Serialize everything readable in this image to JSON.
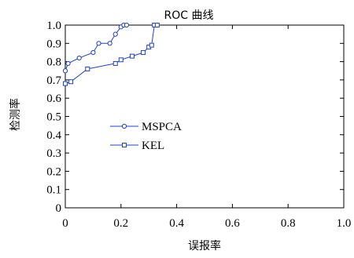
{
  "chart_data": {
    "type": "line",
    "title": "ROC 曲线",
    "xlabel": "误报率",
    "ylabel": "检测率",
    "xlim": [
      0,
      1
    ],
    "ylim": [
      0,
      1
    ],
    "xticks": [
      "0",
      "0.2",
      "0.4",
      "0.6",
      "0.8",
      "1.0"
    ],
    "yticks": [
      "0",
      "0.1",
      "0.2",
      "0.3",
      "0.4",
      "0.5",
      "0.6",
      "0.7",
      "0.8",
      "0.9",
      "1.0"
    ],
    "grid": false,
    "legend_position": "left-center",
    "series": [
      {
        "name": "MSPCA",
        "marker": "circle",
        "color": "#1f3fd6",
        "x": [
          0.0,
          0.01,
          0.05,
          0.1,
          0.12,
          0.16,
          0.18,
          0.2,
          0.21,
          0.22
        ],
        "y": [
          0.75,
          0.79,
          0.82,
          0.85,
          0.9,
          0.9,
          0.95,
          0.99,
          1.0,
          1.0
        ]
      },
      {
        "name": "KEL",
        "marker": "square",
        "color": "#1f3fd6",
        "x": [
          0.0,
          0.02,
          0.08,
          0.18,
          0.2,
          0.24,
          0.28,
          0.3,
          0.31,
          0.32,
          0.33
        ],
        "y": [
          0.68,
          0.69,
          0.76,
          0.79,
          0.81,
          0.83,
          0.85,
          0.88,
          0.89,
          1.0,
          1.0
        ]
      }
    ]
  }
}
